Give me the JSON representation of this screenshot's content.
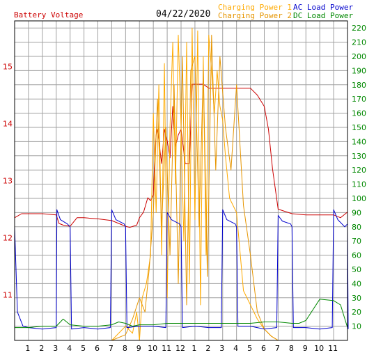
{
  "chart_data": {
    "type": "line",
    "date": "04/22/2020",
    "left_axis": {
      "label": "Battery Voltage",
      "ylim": [
        10.2,
        15.8
      ],
      "ticks": [
        11,
        12,
        13,
        14,
        15
      ]
    },
    "right_axis": {
      "ylim": [
        0,
        225
      ],
      "ticks": [
        10,
        20,
        30,
        40,
        50,
        60,
        70,
        80,
        90,
        100,
        110,
        120,
        130,
        140,
        150,
        160,
        170,
        180,
        190,
        200,
        210,
        220
      ]
    },
    "x_axis": {
      "ticks": [
        "1",
        "2",
        "3",
        "4",
        "5",
        "6",
        "7",
        "8",
        "9",
        "10",
        "11",
        "12",
        "1",
        "2",
        "3",
        "4",
        "5",
        "6",
        "7",
        "8",
        "9",
        "10",
        "11"
      ],
      "xlim": [
        0,
        24
      ]
    },
    "legend": [
      "Charging Power 1",
      "Charging Power 2",
      "AC Load Power",
      "DC Load Power"
    ],
    "colors": {
      "battery": "#cc0000",
      "charge1": "#ffaa00",
      "charge2": "#e69500",
      "ac": "#0000cc",
      "dc": "#008800",
      "grid": "#a0a0a0",
      "right_tick": "#008800",
      "left_tick": "#cc0000",
      "title": "#000000"
    },
    "series": [
      {
        "name": "Battery Voltage",
        "axis": "left",
        "color_key": "battery",
        "x": [
          0,
          0.5,
          1,
          2,
          3,
          3.2,
          3.5,
          4,
          4.5,
          5,
          6,
          7,
          7.5,
          8,
          8.3,
          8.8,
          9,
          9.3,
          9.6,
          9.8,
          10,
          10.1,
          10.2,
          10.3,
          10.5,
          10.6,
          10.8,
          11,
          11.2,
          11.4,
          11.6,
          11.8,
          12,
          12.3,
          12.6,
          12.8,
          13,
          13.3,
          13.6,
          14,
          14.5,
          15,
          16,
          17,
          17.5,
          18,
          18.3,
          18.6,
          19,
          20,
          21,
          22,
          23,
          23.5,
          24
        ],
        "y": [
          12.35,
          12.42,
          12.42,
          12.42,
          12.4,
          12.25,
          12.22,
          12.2,
          12.35,
          12.35,
          12.33,
          12.3,
          12.25,
          12.2,
          12.18,
          12.22,
          12.35,
          12.45,
          12.7,
          12.65,
          12.75,
          13.4,
          13.8,
          13.9,
          13.5,
          13.3,
          13.9,
          13.7,
          13.4,
          14.3,
          13.6,
          13.8,
          13.9,
          13.3,
          13.3,
          14.69,
          14.69,
          14.69,
          14.69,
          14.62,
          14.62,
          14.62,
          14.62,
          14.62,
          14.5,
          14.3,
          13.9,
          13.2,
          12.5,
          12.42,
          12.4,
          12.4,
          12.4,
          12.35,
          12.45
        ]
      },
      {
        "name": "Charging Power 1",
        "axis": "right",
        "color_key": "charge1",
        "x": [
          0,
          7,
          8,
          8.5,
          8.8,
          9,
          9.2,
          9.5,
          9.8,
          10,
          10.2,
          10.4,
          10.6,
          10.8,
          11,
          11.2,
          11.4,
          11.6,
          11.8,
          12,
          12.2,
          12.4,
          12.6,
          12.8,
          13,
          13.2,
          13.4,
          13.6,
          13.8,
          14,
          14.2,
          14.4,
          14.6,
          14.8,
          15,
          15.2,
          15.5,
          16,
          16.5,
          17,
          17.5,
          18,
          18.5,
          19,
          20,
          21,
          22,
          24
        ],
        "y": [
          0,
          0,
          10,
          5,
          20,
          0,
          30,
          40,
          60,
          160,
          90,
          180,
          60,
          195,
          30,
          150,
          210,
          110,
          215,
          150,
          70,
          210,
          40,
          220,
          85,
          218,
          25,
          200,
          60,
          215,
          190,
          160,
          190,
          165,
          155,
          130,
          100,
          90,
          35,
          25,
          15,
          8,
          3,
          0,
          0,
          0,
          0,
          0
        ]
      },
      {
        "name": "Charging Power 2",
        "axis": "right",
        "color_key": "charge2",
        "x": [
          0,
          7,
          8,
          8.5,
          9,
          9.4,
          9.7,
          10,
          10.3,
          10.6,
          10.9,
          11.2,
          11.5,
          11.8,
          12.1,
          12.4,
          12.7,
          13,
          13.3,
          13.6,
          13.9,
          14.2,
          14.5,
          14.8,
          15.2,
          15.6,
          16,
          16.5,
          17,
          17.5,
          18,
          18.5,
          19,
          20,
          24
        ],
        "y": [
          0,
          0,
          4,
          15,
          30,
          20,
          50,
          90,
          170,
          80,
          150,
          60,
          180,
          40,
          200,
          25,
          190,
          200,
          80,
          190,
          45,
          215,
          120,
          200,
          150,
          120,
          180,
          95,
          60,
          20,
          8,
          3,
          0,
          0,
          0
        ]
      },
      {
        "name": "AC Load Power",
        "axis": "right",
        "color_key": "ac",
        "x": [
          0,
          0.2,
          0.6,
          1,
          2,
          3,
          3.05,
          3.3,
          3.8,
          4,
          4.1,
          5,
          6,
          6.9,
          7,
          7.3,
          7.9,
          8,
          8.1,
          9,
          10,
          10.9,
          11,
          11.3,
          11.9,
          12,
          12.1,
          13,
          14,
          14.9,
          15,
          15.3,
          15.9,
          16,
          16.1,
          17,
          18,
          18.9,
          19,
          19.3,
          19.9,
          20,
          20.1,
          21,
          22,
          22.9,
          23,
          23.3,
          23.8,
          24,
          24.05
        ],
        "y": [
          80,
          20,
          10,
          9,
          8,
          9,
          92,
          85,
          82,
          80,
          8,
          9,
          8,
          9,
          92,
          85,
          82,
          80,
          9,
          10,
          10,
          9,
          90,
          85,
          82,
          80,
          9,
          10,
          9,
          9,
          92,
          85,
          82,
          80,
          10,
          10,
          8,
          9,
          88,
          84,
          82,
          80,
          9,
          9,
          8,
          9,
          92,
          85,
          80,
          82,
          8
        ]
      },
      {
        "name": "DC Load Power",
        "axis": "right",
        "color_key": "dc",
        "x": [
          0,
          1,
          2,
          3,
          3.5,
          4,
          5,
          6,
          7,
          7.5,
          8,
          8.5,
          9,
          10,
          11,
          12,
          13,
          14,
          15,
          16,
          17,
          18,
          19,
          20,
          20.5,
          21,
          22,
          23,
          23.5,
          24
        ],
        "y": [
          9,
          9,
          10,
          10,
          15,
          11,
          10,
          10,
          11,
          13,
          12,
          10,
          11,
          11,
          12,
          12,
          12,
          12,
          12,
          12,
          12,
          13,
          13,
          12,
          12,
          14,
          29,
          28,
          25,
          9
        ]
      }
    ]
  }
}
